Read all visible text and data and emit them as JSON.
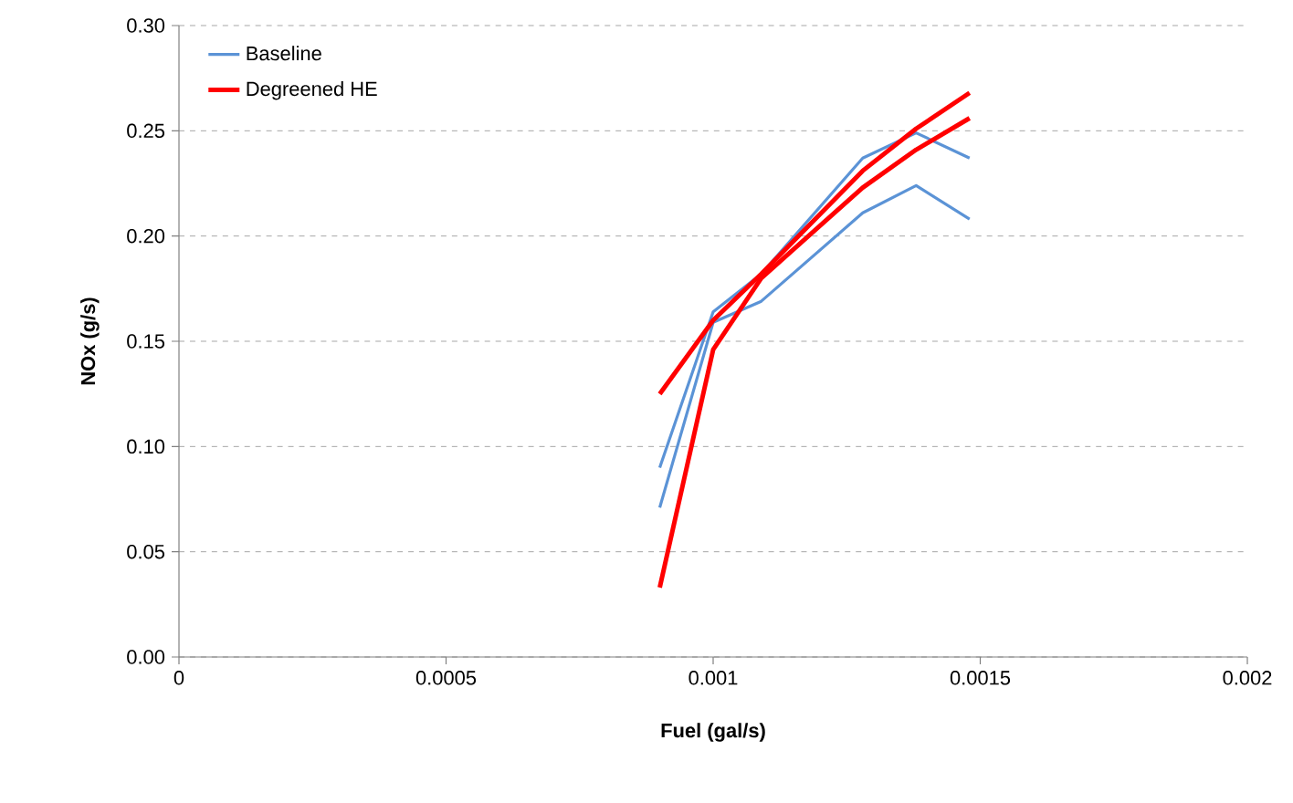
{
  "chart_data": {
    "type": "line",
    "xlabel": "Fuel (gal/s)",
    "ylabel": "NOx (g/s)",
    "xlim": [
      0,
      0.002
    ],
    "xticks": [
      0,
      0.0005,
      0.001,
      0.0015,
      0.002
    ],
    "ylim": [
      0,
      0.3
    ],
    "yticks": [
      {
        "value": 0,
        "label": "0.00"
      },
      {
        "value": 0.05,
        "label": "0.05"
      },
      {
        "value": 0.1,
        "label": "0.10"
      },
      {
        "value": 0.15,
        "label": "0.15"
      },
      {
        "value": 0.2,
        "label": "0.20"
      },
      {
        "value": 0.25,
        "label": "0.25"
      },
      {
        "value": 0.3,
        "label": "0.30"
      }
    ],
    "grid": "y",
    "legend": "top left",
    "marker": "none",
    "line_style": "solid",
    "series": [
      {
        "name": "Baseline",
        "color": "#5b93d6",
        "x": [
          0.0009,
          0.001,
          0.00109,
          0.00128,
          0.00138,
          0.00148
        ],
        "values": [
          0.09,
          0.164,
          0.182,
          0.237,
          0.249,
          0.237
        ]
      },
      {
        "color": "#5b93d6",
        "x": [
          0.0009,
          0.001,
          0.00109,
          0.00128,
          0.00138,
          0.00148
        ],
        "values": [
          0.071,
          0.159,
          0.169,
          0.211,
          0.224,
          0.208
        ]
      },
      {
        "name": "Degreened HE",
        "color": "#ff0000",
        "x": [
          0.0009,
          0.001,
          0.00109,
          0.00128,
          0.00138,
          0.00148
        ],
        "values": [
          0.125,
          0.16,
          0.182,
          0.231,
          0.251,
          0.268
        ]
      },
      {
        "color": "#ff0000",
        "x": [
          0.0009,
          0.001,
          0.00109,
          0.00128,
          0.00138,
          0.00148
        ],
        "values": [
          0.033,
          0.146,
          0.18,
          0.223,
          0.241,
          0.256
        ]
      }
    ]
  }
}
